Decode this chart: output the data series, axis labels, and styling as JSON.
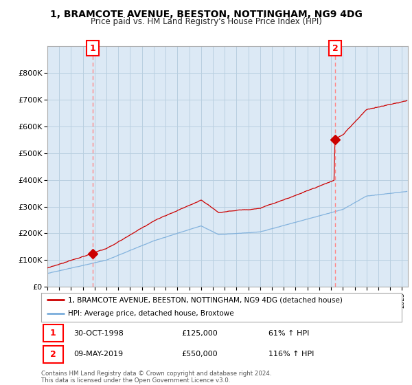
{
  "title": "1, BRAMCOTE AVENUE, BEESTON, NOTTINGHAM, NG9 4DG",
  "subtitle": "Price paid vs. HM Land Registry's House Price Index (HPI)",
  "legend_line1": "1, BRAMCOTE AVENUE, BEESTON, NOTTINGHAM, NG9 4DG (detached house)",
  "legend_line2": "HPI: Average price, detached house, Broxtowe",
  "annotation1_date": "30-OCT-1998",
  "annotation1_price": "£125,000",
  "annotation1_hpi": "61% ↑ HPI",
  "annotation2_date": "09-MAY-2019",
  "annotation2_price": "£550,000",
  "annotation2_hpi": "116% ↑ HPI",
  "footer": "Contains HM Land Registry data © Crown copyright and database right 2024.\nThis data is licensed under the Open Government Licence v3.0.",
  "sale1_year": 1998.83,
  "sale1_price": 125000,
  "sale2_year": 2019.36,
  "sale2_price": 550000,
  "red_line_color": "#cc0000",
  "blue_line_color": "#7aaddb",
  "vline_color": "#ff8888",
  "plot_bg_color": "#dce9f5",
  "background_color": "#ffffff",
  "grid_color": "#b8cfe0",
  "ylim": [
    0,
    900000
  ],
  "xlim_start": 1995.0,
  "xlim_end": 2025.5,
  "yticks": [
    0,
    100000,
    200000,
    300000,
    400000,
    500000,
    600000,
    700000,
    800000
  ],
  "ytick_labels": [
    "£0",
    "£100K",
    "£200K",
    "£300K",
    "£400K",
    "£500K",
    "£600K",
    "£700K",
    "£800K"
  ]
}
